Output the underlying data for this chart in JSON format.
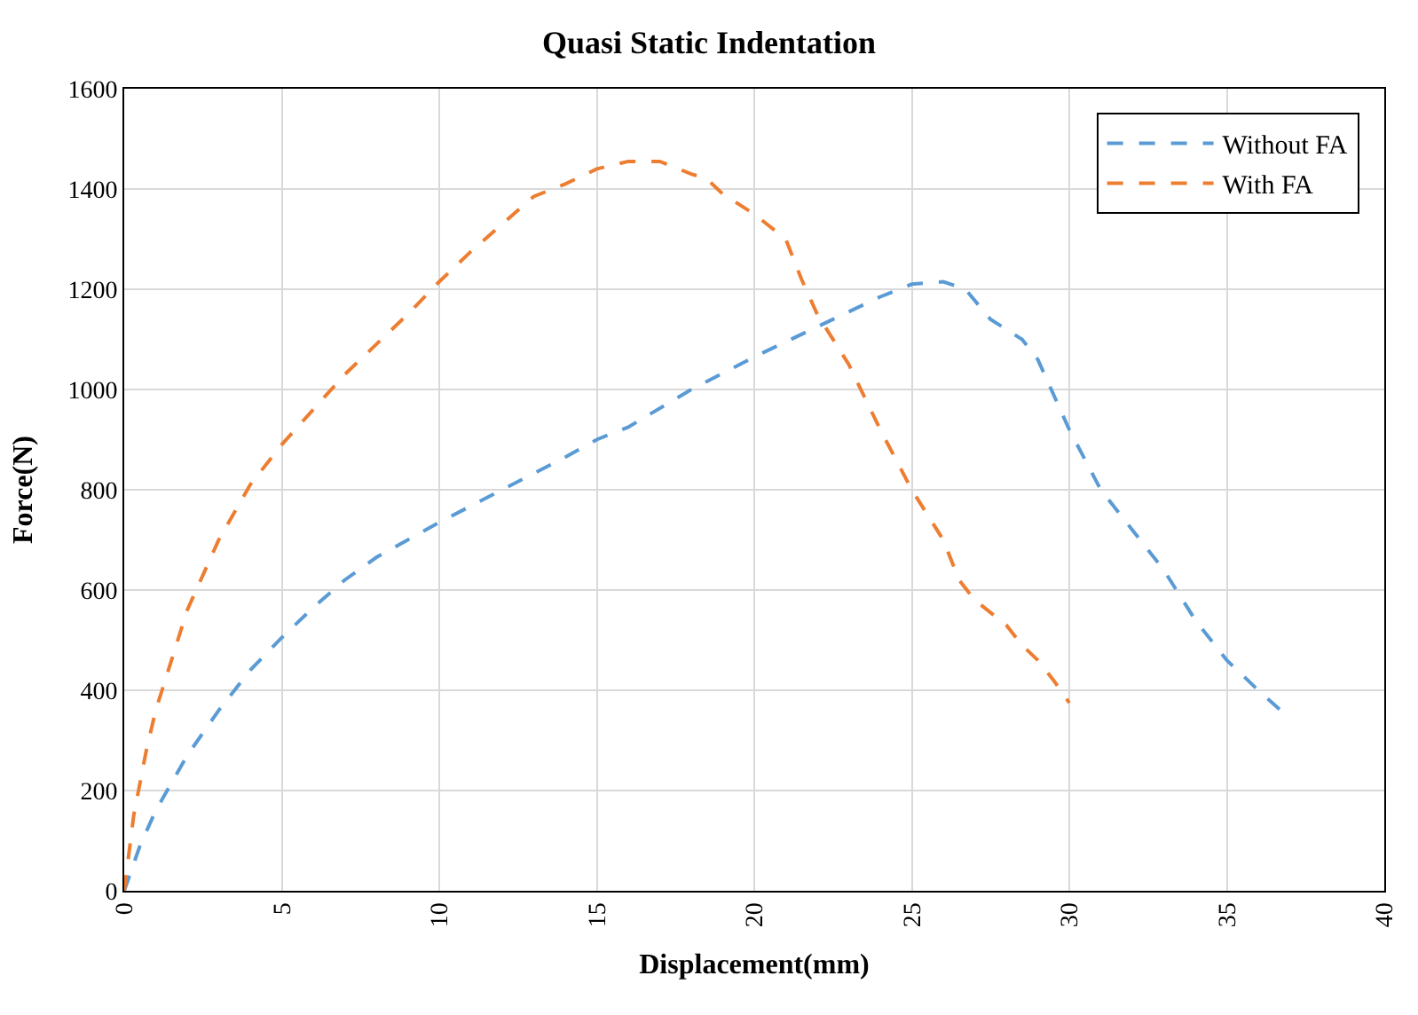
{
  "chart_data": {
    "type": "line",
    "title": "Quasi Static Indentation",
    "xlabel": "Displacement(mm)",
    "ylabel": "Force(N)",
    "xlim": [
      0,
      40
    ],
    "xticks": [
      0,
      5,
      10,
      15,
      20,
      25,
      30,
      35,
      40
    ],
    "ylim": [
      0,
      1600
    ],
    "yticks": [
      0,
      200,
      400,
      600,
      800,
      1000,
      1200,
      1400,
      1600
    ],
    "grid": true,
    "legend": "top right",
    "marker": "none",
    "line_style": "dashed",
    "series": [
      {
        "name": "Without FA",
        "color": "#5b9bd5",
        "x": [
          0,
          0.5,
          1,
          2,
          3,
          4,
          5,
          6,
          7,
          8,
          10,
          12,
          14,
          15,
          16,
          18,
          20,
          22,
          24,
          25,
          26,
          26.7,
          27.5,
          28.5,
          29,
          30,
          31,
          32,
          33,
          34,
          35,
          36,
          36.8
        ],
        "values": [
          0,
          90,
          160,
          270,
          360,
          440,
          505,
          565,
          620,
          665,
          735,
          800,
          865,
          900,
          925,
          1000,
          1065,
          1125,
          1185,
          1210,
          1215,
          1200,
          1140,
          1100,
          1060,
          920,
          800,
          720,
          640,
          540,
          460,
          400,
          355
        ]
      },
      {
        "name": "With FA",
        "color": "#ed7d31",
        "x": [
          0,
          0.3,
          0.7,
          1,
          1.5,
          2,
          3,
          4,
          5,
          6,
          7,
          8,
          9,
          10,
          11,
          12,
          13,
          14,
          15,
          16,
          17,
          18,
          18.5,
          19,
          20,
          21,
          21.5,
          22,
          23,
          24,
          25,
          26,
          26.5,
          27,
          28,
          28.5,
          29,
          29.5,
          30
        ],
        "values": [
          0,
          150,
          280,
          360,
          460,
          560,
          700,
          810,
          890,
          960,
          1030,
          1090,
          1150,
          1215,
          1275,
          1330,
          1385,
          1410,
          1440,
          1455,
          1455,
          1430,
          1420,
          1390,
          1350,
          1300,
          1220,
          1150,
          1050,
          920,
          800,
          700,
          620,
          580,
          530,
          490,
          460,
          420,
          375
        ]
      }
    ]
  }
}
